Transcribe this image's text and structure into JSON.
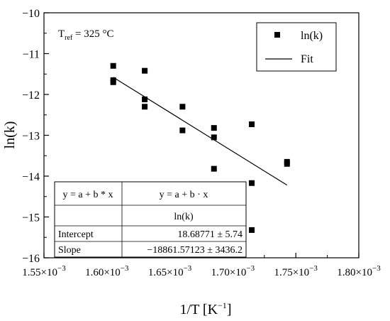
{
  "chart_data": {
    "type": "scatter",
    "xlabel": "1/T [K",
    "xlabel_sup": "−1",
    "xlabel_close": "]",
    "ylabel": "ln(k)",
    "xlim": [
      0.00155,
      0.0018
    ],
    "ylim": [
      -16,
      -10
    ],
    "x_ticks": [
      0.00155,
      0.0016,
      0.00165,
      0.0017,
      0.00175,
      0.0018
    ],
    "x_tick_labels": [
      {
        "mant": "1.55×10",
        "exp": "−3"
      },
      {
        "mant": "1.60×10",
        "exp": "−3"
      },
      {
        "mant": "1.65×10",
        "exp": "−3"
      },
      {
        "mant": "1.70×10",
        "exp": "−3"
      },
      {
        "mant": "1.75×10",
        "exp": "−3"
      },
      {
        "mant": "1.80×10",
        "exp": "−3"
      }
    ],
    "y_ticks": [
      -16,
      -15,
      -14,
      -13,
      -12,
      -11,
      -10
    ],
    "y_tick_labels": [
      "−16",
      "−15",
      "−14",
      "−13",
      "−12",
      "−11",
      "−10"
    ],
    "annotation": {
      "prefix": "T",
      "sub": "ref",
      "suffix": " = 325 °C"
    },
    "legend": {
      "placement": "top-right",
      "entries": [
        {
          "label": "ln(k)",
          "kind": "marker"
        },
        {
          "label": "Fit",
          "kind": "line"
        }
      ]
    },
    "series": [
      {
        "name": "ln(k)",
        "marker": "square",
        "x": [
          0.001605,
          0.001605,
          0.001605,
          0.00163,
          0.00163,
          0.00163,
          0.00166,
          0.00166,
          0.001685,
          0.001685,
          0.001685,
          0.001715,
          0.001715,
          0.001715,
          0.001743,
          0.001743
        ],
        "y": [
          -11.3,
          -11.65,
          -11.7,
          -11.42,
          -12.12,
          -12.3,
          -12.3,
          -12.88,
          -12.82,
          -13.05,
          -13.82,
          -12.73,
          -14.17,
          -15.32,
          -13.65,
          -13.7
        ]
      },
      {
        "name": "Fit",
        "type": "line",
        "x": [
          0.001605,
          0.001743
        ],
        "y": [
          -11.58,
          -14.22
        ]
      }
    ],
    "fit_table": {
      "row1": [
        "y = a + b * x",
        "y = a + b · x"
      ],
      "row2": [
        "",
        "ln(k)"
      ],
      "rows": [
        {
          "label": "Intercept",
          "value": "18.68771 ± 5.74"
        },
        {
          "label": "Slope",
          "value": "−18861.57123 ± 3436.2"
        }
      ]
    }
  }
}
